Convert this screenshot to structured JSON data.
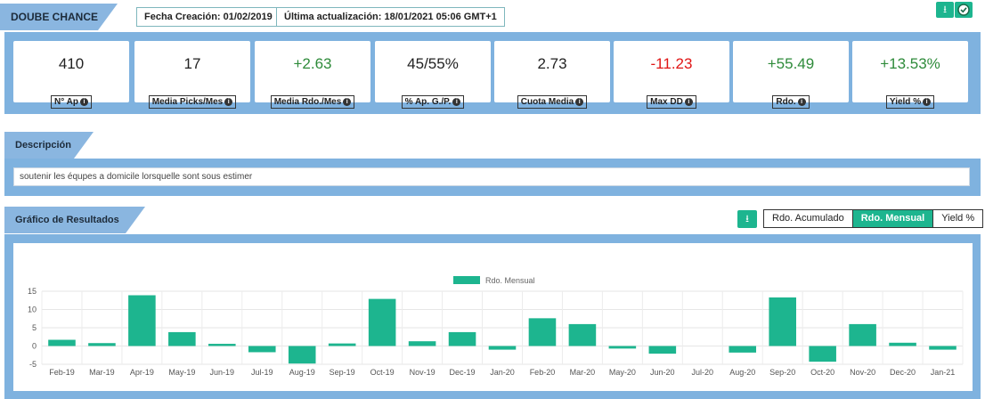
{
  "header": {
    "title": "DOUBE CHANCE",
    "fecha_creacion": "Fecha Creación: 01/02/2019",
    "ultima_actualizacion": "Última actualización: 18/01/2021 05:06 GMT+1"
  },
  "stats": [
    {
      "value": "410",
      "label": "N° Ap",
      "color": "#222222"
    },
    {
      "value": "17",
      "label": "Media Picks/Mes",
      "color": "#222222"
    },
    {
      "value": "+2.63",
      "label": "Media Rdo./Mes",
      "color": "#2e8b3a"
    },
    {
      "value": "45/55%",
      "label": "% Ap. G./P.",
      "color": "#222222"
    },
    {
      "value": "2.73",
      "label": "Cuota Media",
      "color": "#222222"
    },
    {
      "value": "-11.23",
      "label": "Max DD",
      "color": "#e01515"
    },
    {
      "value": "+55.49",
      "label": "Rdo.",
      "color": "#2e8b3a"
    },
    {
      "value": "+13.53%",
      "label": "Yield %",
      "color": "#2e8b3a"
    }
  ],
  "descripcion": {
    "title": "Descripción",
    "text": "soutenir les équpes a domicile lorsquelle sont sous estimer"
  },
  "grafico": {
    "title": "Gráfico de Resultados",
    "toggles": [
      {
        "label": "Rdo. Acumulado",
        "active": false
      },
      {
        "label": "Rdo. Mensual",
        "active": true
      },
      {
        "label": "Yield %",
        "active": false
      }
    ]
  },
  "icons": {
    "download": "download-icon",
    "check": "check-icon",
    "info": "info-icon"
  },
  "accent_color": "#1db58f",
  "chart_data": {
    "type": "bar",
    "series": [
      {
        "name": "Rdo. Mensual",
        "values": [
          1.7,
          0.8,
          13.9,
          3.8,
          0.6,
          -1.7,
          -4.8,
          0.7,
          12.9,
          1.3,
          3.8,
          -1.0,
          7.6,
          6.0,
          -0.7,
          -2.1,
          0,
          -1.8,
          13.3,
          -4.3,
          6.0,
          0.9,
          -1.0
        ]
      }
    ],
    "categories": [
      "Feb-19",
      "Mar-19",
      "Apr-19",
      "May-19",
      "Jun-19",
      "Jul-19",
      "Aug-19",
      "Sep-19",
      "Oct-19",
      "Nov-19",
      "Dec-19",
      "Jan-20",
      "Feb-20",
      "Mar-20",
      "May-20",
      "Jun-20",
      "Jul-20",
      "Aug-20",
      "Sep-20",
      "Oct-20",
      "Nov-20",
      "Dec-20",
      "Jan-21"
    ],
    "yticks": [
      "15",
      "10",
      "5",
      "0",
      "-5"
    ],
    "ylim": [
      -5,
      15
    ],
    "grid": true,
    "legend_position": "top-center",
    "bar_color": "#1db58f"
  }
}
